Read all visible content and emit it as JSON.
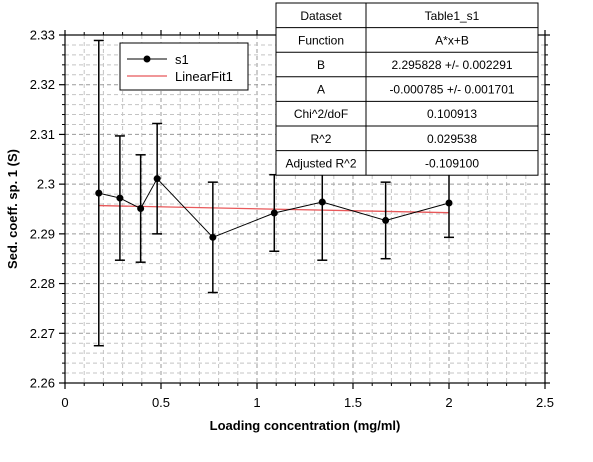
{
  "chart_data": {
    "type": "scatter",
    "xlabel": "Loading concentration (mg/ml)",
    "ylabel": "Sed. coeff. sp. 1 (S)",
    "xlim": [
      0,
      2.5
    ],
    "ylim": [
      2.26,
      2.33
    ],
    "x_ticks": [
      "0",
      "0.5",
      "1",
      "1.5",
      "2",
      "2.5"
    ],
    "y_ticks": [
      "2.26",
      "2.27",
      "2.28",
      "2.29",
      "2.3",
      "2.31",
      "2.32",
      "2.33"
    ],
    "x_tick_values": [
      0,
      0.5,
      1,
      1.5,
      2,
      2.5
    ],
    "y_tick_values": [
      2.26,
      2.27,
      2.28,
      2.29,
      2.3,
      2.31,
      2.32,
      2.33
    ],
    "grid": true,
    "legend_position": "top-left",
    "series": [
      {
        "name": "s1",
        "color": "#000000",
        "style": "line-with-markers",
        "x": [
          0.176,
          0.286,
          0.394,
          0.48,
          0.77,
          1.09,
          1.34,
          1.67,
          2.0
        ],
        "y": [
          2.2982,
          2.2972,
          2.2951,
          2.3011,
          2.2893,
          2.2942,
          2.2964,
          2.2927,
          2.2962
        ],
        "error": [
          0.0307,
          0.0125,
          0.0108,
          0.0111,
          0.0111,
          0.0077,
          0.0117,
          0.0077,
          0.0069
        ]
      },
      {
        "name": "LinearFit1",
        "color": "#e8585a",
        "style": "line",
        "x": [
          0.176,
          2.0
        ],
        "y": [
          2.29569,
          2.29426
        ]
      }
    ],
    "results_table": {
      "rows": [
        [
          "Dataset",
          "Table1_s1"
        ],
        [
          "Function",
          "A*x+B"
        ],
        [
          "B",
          "2.295828 +/- 0.002291"
        ],
        [
          "A",
          "-0.000785 +/- 0.001701"
        ],
        [
          "Chi^2/doF",
          "0.100913"
        ],
        [
          "R^2",
          "0.029538"
        ],
        [
          "Adjusted R^2",
          "-0.109100"
        ]
      ]
    }
  }
}
